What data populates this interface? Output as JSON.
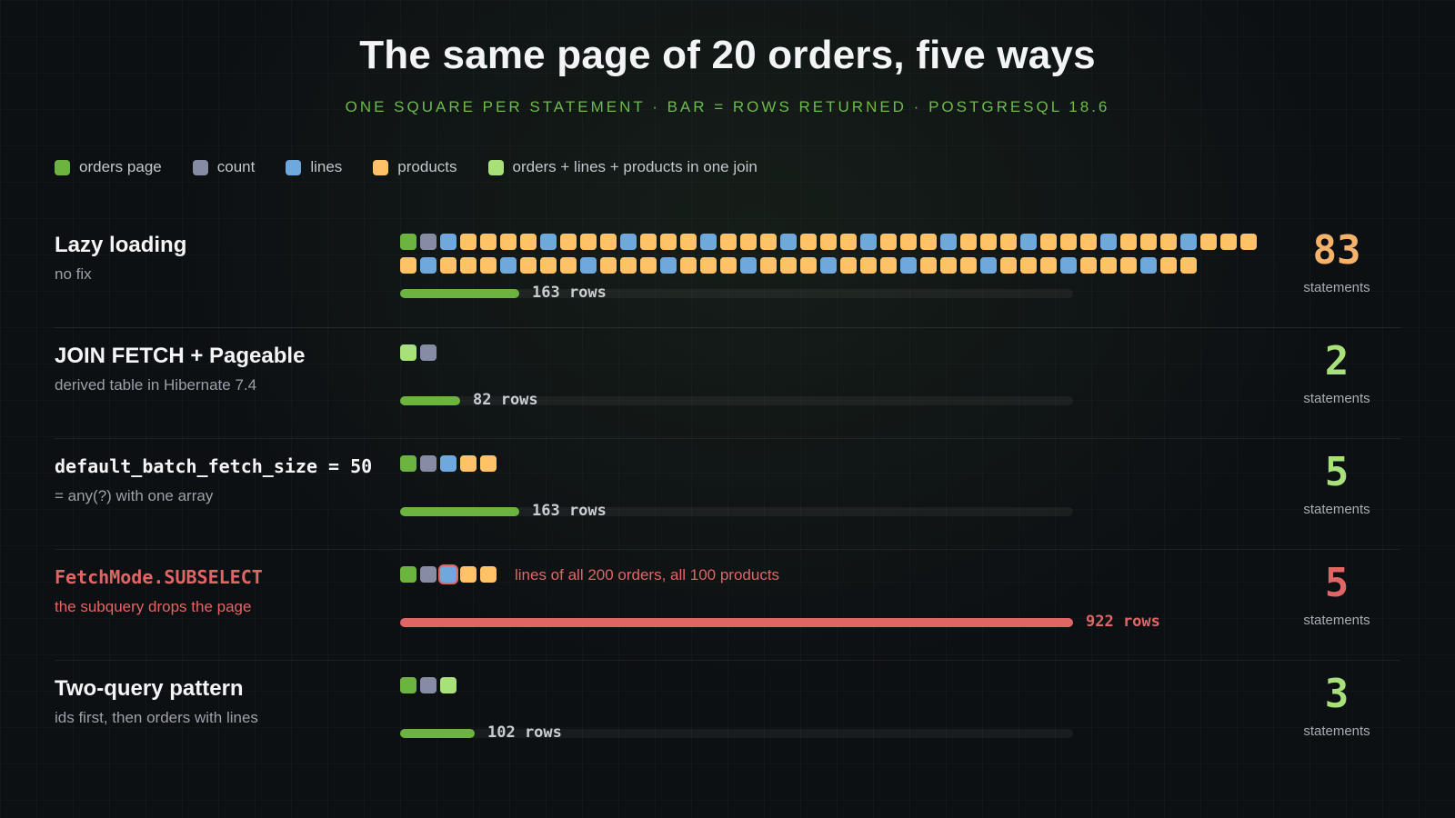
{
  "title": "The same page of 20 orders, five ways",
  "subtitle": "ONE SQUARE PER STATEMENT · BAR = ROWS RETURNED · POSTGRESQL 18.6",
  "colors": {
    "orders_page": "#6db33f",
    "count": "#858ca3",
    "lines": "#6fa8dc",
    "products": "#ffc266",
    "combined": "#a8e07a",
    "bar_normal": "#6db33f",
    "bar_bad": "#e06666",
    "count_bad": "#f6b26b",
    "count_good": "#a8e07a",
    "count_warn": "#e06666"
  },
  "legend": [
    {
      "key": "orders_page",
      "label": "orders page"
    },
    {
      "key": "count",
      "label": "count"
    },
    {
      "key": "lines",
      "label": "lines"
    },
    {
      "key": "products",
      "label": "products"
    },
    {
      "key": "combined",
      "label": "orders + lines + products in one join"
    }
  ],
  "chart_data": {
    "type": "bar",
    "title": "The same page of 20 orders, five ways",
    "subtitle": "ONE SQUARE PER STATEMENT · BAR = ROWS RETURNED · POSTGRESQL 18.6",
    "bar_max_rows": 922,
    "approaches": [
      {
        "name": "Lazy loading",
        "subtitle": "no fix",
        "mono": false,
        "warn": false,
        "statements": 83,
        "statements_text": "83",
        "statements_label": "statements",
        "count_color": "count_bad",
        "rows": 163,
        "rows_label": "163 rows",
        "bar_color": "bar_normal",
        "note": "",
        "square_rows": [
          [
            "orders_page",
            "count",
            "lines",
            "products",
            "products",
            "products",
            "products",
            "lines",
            "products",
            "products",
            "products",
            "lines",
            "products",
            "products",
            "products",
            "lines",
            "products",
            "products",
            "products",
            "lines",
            "products",
            "products",
            "products",
            "lines",
            "products",
            "products",
            "products",
            "lines",
            "products",
            "products",
            "products",
            "lines",
            "products",
            "products",
            "products",
            "lines",
            "products",
            "products",
            "products",
            "lines",
            "products",
            "products",
            "products"
          ],
          [
            "products",
            "lines",
            "products",
            "products",
            "products",
            "lines",
            "products",
            "products",
            "products",
            "lines",
            "products",
            "products",
            "products",
            "lines",
            "products",
            "products",
            "products",
            "lines",
            "products",
            "products",
            "products",
            "lines",
            "products",
            "products",
            "products",
            "lines",
            "products",
            "products",
            "products",
            "lines",
            "products",
            "products",
            "products",
            "lines",
            "products",
            "products",
            "products",
            "lines",
            "products",
            "products"
          ]
        ]
      },
      {
        "name": "JOIN FETCH + Pageable",
        "subtitle": "derived table in Hibernate 7.4",
        "mono": false,
        "warn": false,
        "statements": 2,
        "statements_text": "2",
        "statements_label": "statements",
        "count_color": "count_good",
        "rows": 82,
        "rows_label": "82 rows",
        "bar_color": "bar_normal",
        "note": "",
        "square_rows": [
          [
            "combined",
            "count"
          ]
        ]
      },
      {
        "name": "default_batch_fetch_size = 50",
        "subtitle": "= any(?) with one array",
        "mono": true,
        "warn": false,
        "statements": 5,
        "statements_text": "5",
        "statements_label": "statements",
        "count_color": "count_good",
        "rows": 163,
        "rows_label": "163 rows",
        "bar_color": "bar_normal",
        "note": "",
        "square_rows": [
          [
            "orders_page",
            "count",
            "lines",
            "products",
            "products"
          ]
        ]
      },
      {
        "name": "FetchMode.SUBSELECT",
        "subtitle": "the subquery drops the page",
        "mono": true,
        "warn": true,
        "statements": 5,
        "statements_text": "5",
        "statements_label": "statements",
        "count_color": "count_warn",
        "rows": 922,
        "rows_label": "922 rows",
        "bar_color": "bar_bad",
        "note": "lines of all 200 orders, all 100 products",
        "outlined_square": [
          0,
          2
        ],
        "square_rows": [
          [
            "orders_page",
            "count",
            "lines",
            "products",
            "products"
          ]
        ]
      },
      {
        "name": "Two-query pattern",
        "subtitle": "ids first, then orders with lines",
        "mono": false,
        "warn": false,
        "statements": 3,
        "statements_text": "3",
        "statements_label": "statements",
        "count_color": "count_good",
        "rows": 102,
        "rows_label": "102 rows",
        "bar_color": "bar_normal",
        "note": "",
        "square_rows": [
          [
            "orders_page",
            "count",
            "combined"
          ]
        ]
      }
    ]
  }
}
